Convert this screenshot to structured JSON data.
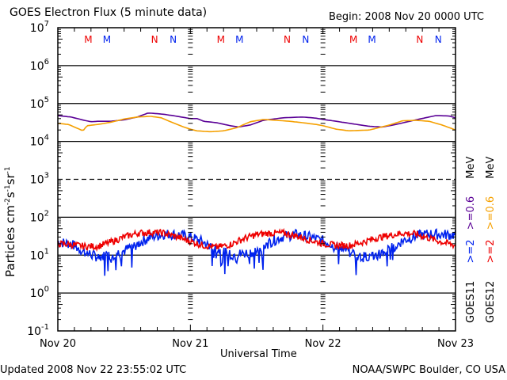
{
  "header": {
    "title": "GOES Electron Flux (5 minute data)",
    "begin": "Begin: 2008 Nov 20 0000 UTC"
  },
  "footer": {
    "updated": "Updated 2008 Nov 22 23:55:02 UTC",
    "credit": "NOAA/SWPC Boulder, CO USA"
  },
  "legend": {
    "goes11": {
      "satellite": "GOES11",
      "ch1": ">=2",
      "ch2": ">=0.6",
      "unit": "MeV",
      "ch1_color": "#0022ee",
      "ch2_color": "#5a0096"
    },
    "goes12": {
      "satellite": "GOES12",
      "ch1": ">=2",
      "ch2": ">=0.6",
      "unit": "MeV",
      "ch1_color": "#ee0000",
      "ch2_color": "#f5a000"
    }
  },
  "colors": {
    "goes11_2mev": "#0022ee",
    "goes12_2mev": "#ee0000",
    "goes11_06mev": "#5a0096",
    "goes12_06mev": "#f5a000"
  },
  "chart_data": {
    "type": "line",
    "title": "GOES Electron Flux (5 minute data)",
    "xlabel": "Universal Time",
    "ylabel": "Particles cm-2 s-1 sr-1",
    "yscale": "log",
    "ylim": [
      0.1,
      10000000
    ],
    "xlim_days": [
      0,
      3
    ],
    "x_tick_labels": [
      "Nov 20",
      "Nov 21",
      "Nov 22",
      "Nov 23"
    ],
    "y_tick_labels": [
      {
        "base": "10",
        "exp": "7",
        "value": 10000000
      },
      {
        "base": "10",
        "exp": "6",
        "value": 1000000
      },
      {
        "base": "10",
        "exp": "5",
        "value": 100000
      },
      {
        "base": "10",
        "exp": "4",
        "value": 10000
      },
      {
        "base": "10",
        "exp": "3",
        "value": 1000
      },
      {
        "base": "10",
        "exp": "2",
        "value": 100
      },
      {
        "base": "10",
        "exp": "1",
        "value": 10
      },
      {
        "base": "10",
        "exp": "0",
        "value": 1
      },
      {
        "base": "10",
        "exp": "-1",
        "value": 0.1
      }
    ],
    "threshold_line": 1000,
    "grid": "horizontal decades",
    "local_time_markers": [
      {
        "label": "M",
        "day": 0.23,
        "color": "#ee0000"
      },
      {
        "label": "M",
        "day": 0.37,
        "color": "#0022ee"
      },
      {
        "label": "N",
        "day": 0.73,
        "color": "#ee0000"
      },
      {
        "label": "N",
        "day": 0.87,
        "color": "#0022ee"
      },
      {
        "label": "M",
        "day": 1.23,
        "color": "#ee0000"
      },
      {
        "label": "M",
        "day": 1.37,
        "color": "#0022ee"
      },
      {
        "label": "N",
        "day": 1.73,
        "color": "#ee0000"
      },
      {
        "label": "N",
        "day": 1.87,
        "color": "#0022ee"
      },
      {
        "label": "M",
        "day": 2.23,
        "color": "#ee0000"
      },
      {
        "label": "M",
        "day": 2.37,
        "color": "#0022ee"
      },
      {
        "label": "N",
        "day": 2.73,
        "color": "#ee0000"
      },
      {
        "label": "N",
        "day": 2.87,
        "color": "#0022ee"
      }
    ],
    "series": [
      {
        "name": "GOES11 >=0.6 MeV",
        "color": "#5a0096",
        "noise": 0,
        "x": [
          0,
          0.1,
          0.2,
          0.25,
          0.3,
          0.4,
          0.5,
          0.6,
          0.68,
          0.72,
          0.8,
          0.9,
          1.0,
          1.05,
          1.1,
          1.2,
          1.3,
          1.36,
          1.45,
          1.55,
          1.7,
          1.85,
          1.95,
          2.0,
          2.1,
          2.2,
          2.35,
          2.45,
          2.55,
          2.7,
          2.85,
          2.95,
          3.0
        ],
        "y": [
          48000,
          44000,
          36000,
          33000,
          34000,
          34000,
          37000,
          44000,
          56000,
          55000,
          52000,
          46000,
          40000,
          40000,
          34000,
          31000,
          26000,
          24000,
          27000,
          36000,
          42000,
          44000,
          41000,
          38000,
          34000,
          30000,
          25000,
          24000,
          28000,
          37000,
          48000,
          47000,
          42000
        ]
      },
      {
        "name": "GOES12 >=0.6 MeV",
        "color": "#f5a000",
        "noise": 0,
        "x": [
          0,
          0.08,
          0.15,
          0.19,
          0.22,
          0.3,
          0.4,
          0.5,
          0.6,
          0.7,
          0.78,
          0.85,
          0.95,
          1.0,
          1.05,
          1.15,
          1.25,
          1.35,
          1.45,
          1.55,
          1.65,
          1.75,
          1.85,
          1.95,
          2.0,
          2.1,
          2.2,
          2.35,
          2.5,
          2.6,
          2.7,
          2.8,
          2.9,
          3.0
        ],
        "y": [
          30000,
          28000,
          22000,
          19000,
          26000,
          28000,
          32000,
          39000,
          44000,
          46000,
          42000,
          33000,
          24000,
          21000,
          19000,
          18000,
          19000,
          23000,
          33000,
          38000,
          36000,
          34000,
          31000,
          28000,
          26000,
          21000,
          19000,
          20000,
          27000,
          35000,
          36000,
          34000,
          27000,
          20000
        ]
      },
      {
        "name": "GOES11 >=2 MeV",
        "color": "#0022ee",
        "noise": 0.14,
        "dips": true,
        "x": [
          0,
          0.1,
          0.2,
          0.3,
          0.4,
          0.5,
          0.6,
          0.7,
          0.8,
          0.9,
          1.0,
          1.1,
          1.2,
          1.3,
          1.4,
          1.5,
          1.6,
          1.7,
          1.8,
          1.9,
          2.0,
          2.1,
          2.2,
          2.3,
          2.4,
          2.5,
          2.6,
          2.7,
          2.8,
          2.9,
          3.0
        ],
        "y": [
          22,
          20,
          12,
          9,
          10,
          13,
          20,
          30,
          36,
          35,
          30,
          22,
          14,
          10,
          11,
          13,
          22,
          31,
          35,
          30,
          24,
          18,
          12,
          9,
          10,
          14,
          24,
          32,
          36,
          35,
          34
        ]
      },
      {
        "name": "GOES12 >=2 MeV",
        "color": "#ee0000",
        "noise": 0.09,
        "dips": false,
        "x": [
          0,
          0.1,
          0.2,
          0.3,
          0.4,
          0.5,
          0.6,
          0.7,
          0.8,
          0.9,
          1.0,
          1.1,
          1.2,
          1.3,
          1.4,
          1.5,
          1.6,
          1.7,
          1.8,
          1.9,
          2.0,
          2.1,
          2.2,
          2.3,
          2.4,
          2.5,
          2.6,
          2.7,
          2.8,
          2.9,
          3.0
        ],
        "y": [
          20,
          19,
          17,
          17,
          22,
          30,
          38,
          40,
          38,
          30,
          23,
          18,
          16,
          19,
          27,
          35,
          38,
          38,
          32,
          25,
          20,
          18,
          18,
          22,
          28,
          33,
          38,
          36,
          28,
          22,
          18
        ]
      }
    ]
  }
}
